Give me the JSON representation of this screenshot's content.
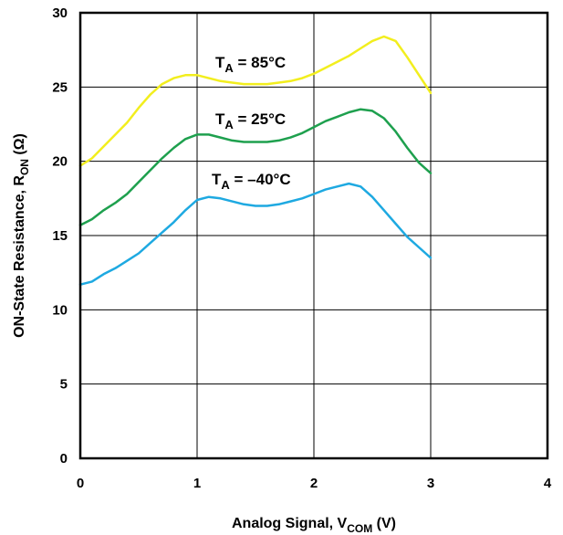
{
  "chart_data": {
    "type": "line",
    "xlabel_main": "Analog Signal, V",
    "xlabel_sub": "COM",
    "xlabel_tail": " (V)",
    "ylabel_main": "ON-State Resistance,  R",
    "ylabel_sub": "ON",
    "ylabel_tail": " (Ω)",
    "xlim": [
      0,
      4
    ],
    "ylim": [
      0,
      30
    ],
    "x_ticks": [
      "0",
      "1",
      "2",
      "3",
      "4"
    ],
    "y_ticks": [
      "0",
      "5",
      "10",
      "15",
      "20",
      "25",
      "30"
    ],
    "grid": true,
    "series": [
      {
        "name": "T_A = 85°C",
        "label_main": "T",
        "label_sub": "A",
        "label_tail": " = 85°C",
        "color": "#F2EE1E",
        "points": [
          [
            0,
            19.7
          ],
          [
            0.1,
            20.2
          ],
          [
            0.2,
            21.0
          ],
          [
            0.3,
            21.8
          ],
          [
            0.4,
            22.6
          ],
          [
            0.5,
            23.6
          ],
          [
            0.6,
            24.5
          ],
          [
            0.7,
            25.2
          ],
          [
            0.8,
            25.6
          ],
          [
            0.9,
            25.8
          ],
          [
            1.0,
            25.8
          ],
          [
            1.1,
            25.6
          ],
          [
            1.2,
            25.4
          ],
          [
            1.3,
            25.3
          ],
          [
            1.4,
            25.2
          ],
          [
            1.5,
            25.2
          ],
          [
            1.6,
            25.2
          ],
          [
            1.7,
            25.3
          ],
          [
            1.8,
            25.4
          ],
          [
            1.9,
            25.6
          ],
          [
            2.0,
            25.9
          ],
          [
            2.1,
            26.3
          ],
          [
            2.2,
            26.7
          ],
          [
            2.3,
            27.1
          ],
          [
            2.4,
            27.6
          ],
          [
            2.5,
            28.1
          ],
          [
            2.6,
            28.4
          ],
          [
            2.7,
            28.1
          ],
          [
            2.8,
            27.0
          ],
          [
            2.9,
            25.8
          ],
          [
            3.0,
            24.6
          ]
        ]
      },
      {
        "name": "T_A = 25°C",
        "label_main": "T",
        "label_sub": "A",
        "label_tail": " = 25°C",
        "color": "#1EA04E",
        "points": [
          [
            0,
            15.7
          ],
          [
            0.1,
            16.1
          ],
          [
            0.2,
            16.7
          ],
          [
            0.3,
            17.2
          ],
          [
            0.4,
            17.8
          ],
          [
            0.5,
            18.6
          ],
          [
            0.6,
            19.4
          ],
          [
            0.7,
            20.2
          ],
          [
            0.8,
            20.9
          ],
          [
            0.9,
            21.5
          ],
          [
            1.0,
            21.8
          ],
          [
            1.1,
            21.8
          ],
          [
            1.2,
            21.6
          ],
          [
            1.3,
            21.4
          ],
          [
            1.4,
            21.3
          ],
          [
            1.5,
            21.3
          ],
          [
            1.6,
            21.3
          ],
          [
            1.7,
            21.4
          ],
          [
            1.8,
            21.6
          ],
          [
            1.9,
            21.9
          ],
          [
            2.0,
            22.3
          ],
          [
            2.1,
            22.7
          ],
          [
            2.2,
            23.0
          ],
          [
            2.3,
            23.3
          ],
          [
            2.4,
            23.5
          ],
          [
            2.5,
            23.4
          ],
          [
            2.6,
            22.9
          ],
          [
            2.7,
            22.0
          ],
          [
            2.8,
            20.9
          ],
          [
            2.9,
            19.9
          ],
          [
            3.0,
            19.2
          ]
        ]
      },
      {
        "name": "T_A = –40°C",
        "label_main": "T",
        "label_sub": "A",
        "label_tail": " = –40°C",
        "color": "#1EA9E1",
        "points": [
          [
            0,
            11.7
          ],
          [
            0.1,
            11.9
          ],
          [
            0.2,
            12.4
          ],
          [
            0.3,
            12.8
          ],
          [
            0.4,
            13.3
          ],
          [
            0.5,
            13.8
          ],
          [
            0.6,
            14.5
          ],
          [
            0.7,
            15.2
          ],
          [
            0.8,
            15.9
          ],
          [
            0.9,
            16.7
          ],
          [
            1.0,
            17.4
          ],
          [
            1.1,
            17.6
          ],
          [
            1.2,
            17.5
          ],
          [
            1.3,
            17.3
          ],
          [
            1.4,
            17.1
          ],
          [
            1.5,
            17.0
          ],
          [
            1.6,
            17.0
          ],
          [
            1.7,
            17.1
          ],
          [
            1.8,
            17.3
          ],
          [
            1.9,
            17.5
          ],
          [
            2.0,
            17.8
          ],
          [
            2.1,
            18.1
          ],
          [
            2.2,
            18.3
          ],
          [
            2.3,
            18.5
          ],
          [
            2.4,
            18.3
          ],
          [
            2.5,
            17.6
          ],
          [
            2.6,
            16.7
          ],
          [
            2.7,
            15.8
          ],
          [
            2.8,
            14.9
          ],
          [
            2.9,
            14.2
          ],
          [
            3.0,
            13.5
          ]
        ]
      }
    ]
  }
}
